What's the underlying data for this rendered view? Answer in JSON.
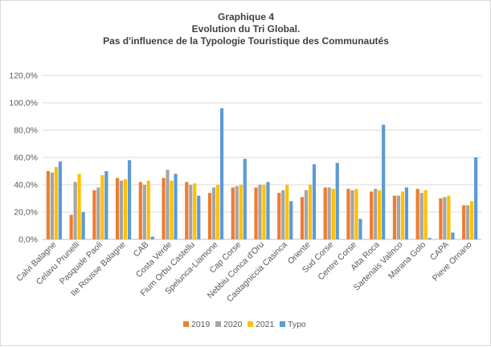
{
  "chart_data": {
    "type": "bar",
    "title": "Graphique 4",
    "subtitle_lines": [
      "Evolution du Tri Global.",
      "Pas d'influence de la Typologie Touristique des Communautés"
    ],
    "xlabel": "",
    "ylabel": "",
    "ylim": [
      0,
      120
    ],
    "y_ticks": [
      "0,0%",
      "20,0%",
      "40,0%",
      "60,0%",
      "80,0%",
      "100,0%",
      "120,0%"
    ],
    "grid": true,
    "legend_position": "bottom",
    "categories": [
      "Calvi Balagne",
      "Celavu Prunelli",
      "Pasquale Paoli",
      "Ile Rousse Balagne",
      "CAB",
      "Costa Verde",
      "Fium Orbu Castellu",
      "Spelunca-Liamone",
      "Cap Corse",
      "Nebbiu Conca d'Oru",
      "Castagniccia Casinca",
      "Oriente",
      "Sud Corse",
      "Centre Corse",
      "Alta Roca",
      "Sartenais Valinco",
      "Marana Golo",
      "CAPA",
      "Pieve Ornano"
    ],
    "series": [
      {
        "name": "2019",
        "color": "#ed7d31",
        "values": [
          50,
          18,
          36,
          45,
          42,
          45,
          42,
          34,
          38,
          38,
          34,
          31,
          38,
          37,
          35,
          32,
          37,
          30,
          25
        ]
      },
      {
        "name": "2020",
        "color": "#a5a5a5",
        "values": [
          49,
          42,
          38,
          43,
          40,
          51,
          40,
          38,
          39,
          40,
          36,
          36,
          38,
          36,
          37,
          32,
          34,
          31,
          25
        ]
      },
      {
        "name": "2021",
        "color": "#ffc000",
        "values": [
          53,
          48,
          47,
          44,
          43,
          43,
          41,
          40,
          40,
          40,
          40,
          40,
          37,
          37,
          36,
          35,
          36,
          32,
          28
        ]
      },
      {
        "name": "Typo",
        "color": "#5b9bd5",
        "values": [
          57,
          20,
          50,
          58,
          2,
          48,
          32,
          96,
          59,
          42,
          28,
          55,
          56,
          15,
          84,
          38,
          1,
          5,
          60
        ]
      }
    ]
  }
}
